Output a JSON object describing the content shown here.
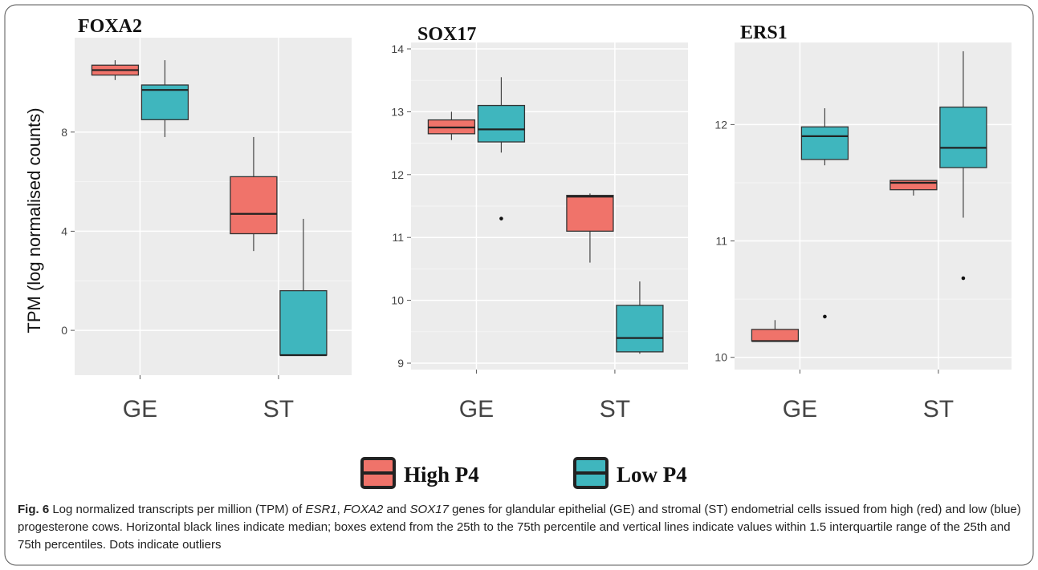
{
  "colors": {
    "high": "#f0736a",
    "low": "#3fb6be",
    "panel_bg": "#ececec",
    "grid": "#ffffff"
  },
  "y_axis_label": "TPM (log normalised counts)",
  "legend": [
    {
      "label": "High P4",
      "color": "#f0736a"
    },
    {
      "label": "Low P4",
      "color": "#3fb6be"
    }
  ],
  "caption": {
    "fig_label": "Fig. 6",
    "parts": [
      {
        "t": " Log normalized transcripts per million (TPM) of ",
        "i": false
      },
      {
        "t": "ESR1",
        "i": true
      },
      {
        "t": ", ",
        "i": false
      },
      {
        "t": "FOXA2",
        "i": true
      },
      {
        "t": " and ",
        "i": false
      },
      {
        "t": "SOX17",
        "i": true
      },
      {
        "t": " genes for glandular epithelial (GE) and stromal (ST) endometrial cells issued from high (red) and low (blue) progesterone cows. Horizontal black lines indicate median; boxes extend from the 25th to the 75th percentile and vertical lines indicate values within 1.5 interquartile range of the 25th and 75th percentiles. Dots indicate outliers",
        "i": false
      }
    ]
  },
  "chart_data": [
    {
      "type": "box",
      "title": "FOXA2",
      "categories": [
        "GE",
        "ST"
      ],
      "yticks": [
        0,
        4,
        8
      ],
      "ylim": [
        -1.5,
        11.3
      ],
      "grid": true,
      "series": [
        {
          "name": "High P4",
          "boxes": [
            {
              "category": "GE",
              "min": 10.1,
              "q1": 10.3,
              "median": 10.5,
              "q3": 10.7,
              "max": 10.9,
              "outliers": []
            },
            {
              "category": "ST",
              "min": 3.2,
              "q1": 3.9,
              "median": 4.7,
              "q3": 6.2,
              "max": 7.8,
              "outliers": []
            }
          ]
        },
        {
          "name": "Low P4",
          "boxes": [
            {
              "category": "GE",
              "min": 7.8,
              "q1": 8.5,
              "median": 9.7,
              "q3": 9.9,
              "max": 10.9,
              "outliers": []
            },
            {
              "category": "ST",
              "min": -1.0,
              "q1": -1.0,
              "median": -1.0,
              "q3": 1.6,
              "max": 4.5,
              "outliers": []
            }
          ]
        }
      ]
    },
    {
      "type": "box",
      "title": "SOX17",
      "categories": [
        "GE",
        "ST"
      ],
      "yticks": [
        9,
        10,
        11,
        12,
        13,
        14
      ],
      "ylim": [
        9,
        14
      ],
      "grid": true,
      "series": [
        {
          "name": "High P4",
          "boxes": [
            {
              "category": "GE",
              "min": 12.55,
              "q1": 12.65,
              "median": 12.75,
              "q3": 12.87,
              "max": 13.0,
              "outliers": []
            },
            {
              "category": "ST",
              "min": 10.6,
              "q1": 11.1,
              "median": 11.65,
              "q3": 11.67,
              "max": 11.7,
              "outliers": []
            }
          ]
        },
        {
          "name": "Low P4",
          "boxes": [
            {
              "category": "GE",
              "min": 12.35,
              "q1": 12.52,
              "median": 12.72,
              "q3": 13.1,
              "max": 13.55,
              "outliers": [
                11.3
              ]
            },
            {
              "category": "ST",
              "min": 9.15,
              "q1": 9.18,
              "median": 9.4,
              "q3": 9.92,
              "max": 10.3,
              "outliers": []
            }
          ]
        }
      ]
    },
    {
      "type": "box",
      "title": "ERS1",
      "categories": [
        "GE",
        "ST"
      ],
      "yticks": [
        10,
        11,
        12
      ],
      "ylim": [
        9.95,
        12.65
      ],
      "grid": true,
      "series": [
        {
          "name": "High P4",
          "boxes": [
            {
              "category": "GE",
              "min": 10.14,
              "q1": 10.14,
              "median": 10.14,
              "q3": 10.24,
              "max": 10.32,
              "outliers": []
            },
            {
              "category": "ST",
              "min": 11.39,
              "q1": 11.44,
              "median": 11.5,
              "q3": 11.52,
              "max": 11.52,
              "outliers": []
            }
          ]
        },
        {
          "name": "Low P4",
          "boxes": [
            {
              "category": "GE",
              "min": 11.65,
              "q1": 11.7,
              "median": 11.9,
              "q3": 11.98,
              "max": 12.14,
              "outliers": [
                10.35
              ]
            },
            {
              "category": "ST",
              "min": 11.2,
              "q1": 11.63,
              "median": 11.8,
              "q3": 12.15,
              "max": 12.63,
              "outliers": [
                10.68
              ]
            }
          ]
        }
      ]
    }
  ]
}
